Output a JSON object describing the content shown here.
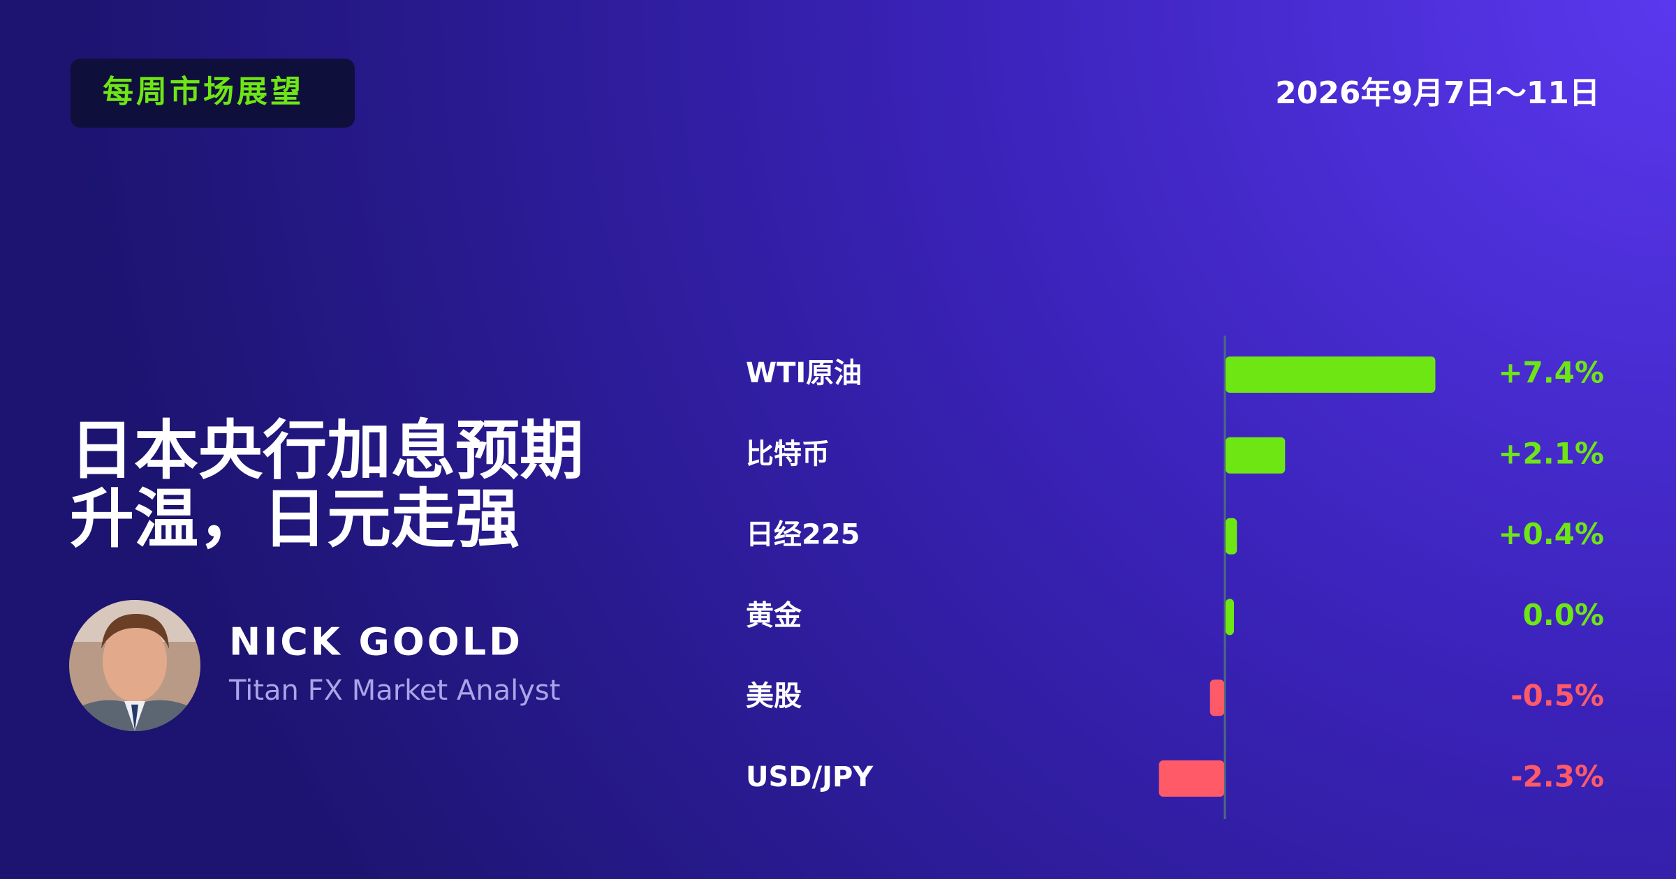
{
  "header": {
    "tag": "每周市场展望",
    "date": "2026年9月7日～11日"
  },
  "headline": [
    "日本央行加息预期",
    "升温，日元走强"
  ],
  "author": {
    "name": "NICK GOOLD",
    "role": "Titan FX Market Analyst"
  },
  "chart_data": {
    "type": "bar",
    "orientation": "horizontal",
    "categories": [
      "WTI原油",
      "比特币",
      "日经225",
      "黄金",
      "美股",
      "USD/JPY"
    ],
    "values": [
      7.4,
      2.1,
      0.4,
      0.0,
      -0.5,
      -2.3
    ],
    "value_labels": [
      "+7.4%",
      "+2.1%",
      "+0.4%",
      "0.0%",
      "-0.5%",
      "-2.3%"
    ],
    "colors": {
      "positive": "#6ee614",
      "negative": "#ff5a68"
    }
  }
}
